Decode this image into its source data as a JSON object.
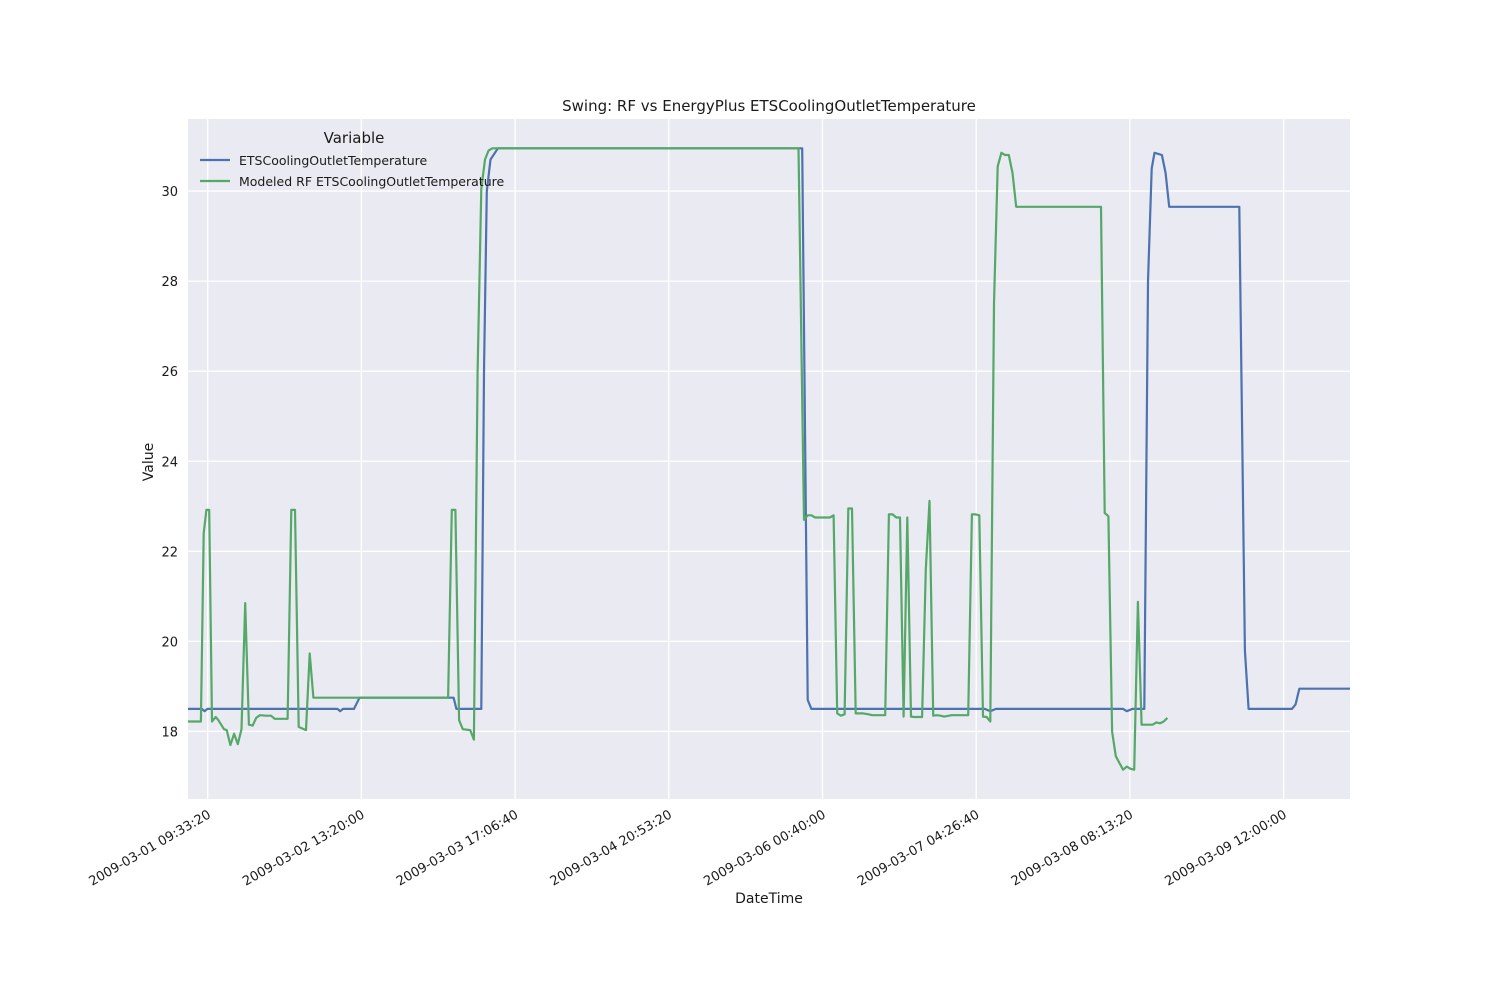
{
  "chart_data": {
    "type": "line",
    "title": "Swing: RF vs EnergyPlus ETSCoolingOutletTemperature",
    "xlabel": "DateTime",
    "ylabel": "Value",
    "x_range": [
      "2009-03-01 06:00:00",
      "2009-03-10 00:00:00"
    ],
    "ylim": [
      16.5,
      31.6
    ],
    "x_ticks": [
      "2009-03-01 09:33:20",
      "2009-03-02 13:20:00",
      "2009-03-03 17:06:40",
      "2009-03-04 20:53:20",
      "2009-03-06 00:40:00",
      "2009-03-07 04:26:40",
      "2009-03-08 08:13:20",
      "2009-03-09 12:00:00"
    ],
    "y_ticks": [
      18,
      20,
      22,
      24,
      26,
      28,
      30
    ],
    "grid": true,
    "legend": {
      "title": "Variable",
      "placement": "top-left"
    },
    "colors": {
      "background": "#eaeaf2",
      "grid": "#ffffff"
    },
    "series": [
      {
        "name": "ETSCoolingOutletTemperature",
        "color": "#4c72b0",
        "points": [
          [
            "2009-03-01 06:00:00",
            18.5
          ],
          [
            "2009-03-01 08:30:00",
            18.5
          ],
          [
            "2009-03-01 09:00:00",
            18.45
          ],
          [
            "2009-03-01 09:30:00",
            18.5
          ],
          [
            "2009-03-01 18:00:00",
            18.5
          ],
          [
            "2009-03-02 00:00:00",
            18.5
          ],
          [
            "2009-03-02 06:00:00",
            18.5
          ],
          [
            "2009-03-02 09:00:00",
            18.5
          ],
          [
            "2009-03-02 09:30:00",
            18.45
          ],
          [
            "2009-03-02 10:00:00",
            18.5
          ],
          [
            "2009-03-02 12:00:00",
            18.5
          ],
          [
            "2009-03-02 13:00:00",
            18.75
          ],
          [
            "2009-03-03 06:00:00",
            18.75
          ],
          [
            "2009-03-03 06:30:00",
            18.5
          ],
          [
            "2009-03-03 10:00:00",
            18.5
          ],
          [
            "2009-03-03 11:00:00",
            18.5
          ],
          [
            "2009-03-03 11:30:00",
            26
          ],
          [
            "2009-03-03 12:00:00",
            30
          ],
          [
            "2009-03-03 12:40:00",
            30.7
          ],
          [
            "2009-03-03 14:00:00",
            30.95
          ],
          [
            "2009-03-05 21:00:00",
            30.95
          ],
          [
            "2009-03-05 22:00:00",
            18.7
          ],
          [
            "2009-03-05 22:40:00",
            18.5
          ],
          [
            "2009-03-07 06:00:00",
            18.5
          ],
          [
            "2009-03-07 07:00:00",
            18.45
          ],
          [
            "2009-03-07 08:00:00",
            18.5
          ],
          [
            "2009-03-08 07:00:00",
            18.5
          ],
          [
            "2009-03-08 07:40:00",
            18.45
          ],
          [
            "2009-03-08 08:40:00",
            18.5
          ],
          [
            "2009-03-08 10:50:00",
            18.5
          ],
          [
            "2009-03-08 11:30:00",
            28
          ],
          [
            "2009-03-08 12:10:00",
            30.5
          ],
          [
            "2009-03-08 12:40:00",
            30.85
          ],
          [
            "2009-03-08 14:00:00",
            30.8
          ],
          [
            "2009-03-08 14:40:00",
            30.4
          ],
          [
            "2009-03-08 15:20:00",
            29.65
          ],
          [
            "2009-03-09 04:00:00",
            29.65
          ],
          [
            "2009-03-09 05:00:00",
            19.8
          ],
          [
            "2009-03-09 05:40:00",
            18.5
          ],
          [
            "2009-03-09 13:30:00",
            18.5
          ],
          [
            "2009-03-09 14:10:00",
            18.6
          ],
          [
            "2009-03-09 14:50:00",
            18.95
          ],
          [
            "2009-03-10 00:00:00",
            18.95
          ]
        ]
      },
      {
        "name": "Modeled RF ETSCoolingOutletTemperature",
        "color": "#55a868",
        "points": [
          [
            "2009-03-01 06:00:00",
            18.22
          ],
          [
            "2009-03-01 07:40:00",
            18.22
          ],
          [
            "2009-03-01 08:20:00",
            18.22
          ],
          [
            "2009-03-01 08:50:00",
            22.4
          ],
          [
            "2009-03-01 09:20:00",
            22.92
          ],
          [
            "2009-03-01 09:50:00",
            22.92
          ],
          [
            "2009-03-01 10:20:00",
            18.22
          ],
          [
            "2009-03-01 11:00:00",
            18.32
          ],
          [
            "2009-03-01 11:30:00",
            18.25
          ],
          [
            "2009-03-01 12:30:00",
            18.05
          ],
          [
            "2009-03-01 13:00:00",
            18.03
          ],
          [
            "2009-03-01 13:40:00",
            17.7
          ],
          [
            "2009-03-01 14:20:00",
            17.95
          ],
          [
            "2009-03-01 15:00:00",
            17.72
          ],
          [
            "2009-03-01 15:40:00",
            18.05
          ],
          [
            "2009-03-01 16:20:00",
            20.85
          ],
          [
            "2009-03-01 17:00:00",
            18.15
          ],
          [
            "2009-03-01 17:40:00",
            18.13
          ],
          [
            "2009-03-01 18:20:00",
            18.3
          ],
          [
            "2009-03-01 19:00:00",
            18.36
          ],
          [
            "2009-03-01 20:00:00",
            18.35
          ],
          [
            "2009-03-01 21:00:00",
            18.35
          ],
          [
            "2009-03-01 21:40:00",
            18.28
          ],
          [
            "2009-03-02 00:00:00",
            18.28
          ],
          [
            "2009-03-02 00:40:00",
            22.92
          ],
          [
            "2009-03-02 01:20:00",
            22.92
          ],
          [
            "2009-03-02 02:00:00",
            18.1
          ],
          [
            "2009-03-02 03:20:00",
            18.03
          ],
          [
            "2009-03-02 04:00:00",
            19.73
          ],
          [
            "2009-03-02 04:40:00",
            18.75
          ],
          [
            "2009-03-03 05:00:00",
            18.75
          ],
          [
            "2009-03-03 05:40:00",
            22.92
          ],
          [
            "2009-03-03 06:20:00",
            22.92
          ],
          [
            "2009-03-03 07:00:00",
            18.25
          ],
          [
            "2009-03-03 07:40:00",
            18.05
          ],
          [
            "2009-03-03 09:00:00",
            18.03
          ],
          [
            "2009-03-03 09:40:00",
            17.82
          ],
          [
            "2009-03-03 10:20:00",
            26
          ],
          [
            "2009-03-03 11:00:00",
            30.05
          ],
          [
            "2009-03-03 11:40:00",
            30.7
          ],
          [
            "2009-03-03 12:20:00",
            30.9
          ],
          [
            "2009-03-03 13:00:00",
            30.95
          ],
          [
            "2009-03-05 20:20:00",
            30.95
          ],
          [
            "2009-03-05 21:20:00",
            22.7
          ],
          [
            "2009-03-05 22:00:00",
            22.8
          ],
          [
            "2009-03-05 22:40:00",
            22.8
          ],
          [
            "2009-03-05 23:20:00",
            22.75
          ],
          [
            "2009-03-06 02:00:00",
            22.75
          ],
          [
            "2009-03-06 02:40:00",
            22.8
          ],
          [
            "2009-03-06 03:20:00",
            18.4
          ],
          [
            "2009-03-06 04:00:00",
            18.35
          ],
          [
            "2009-03-06 04:40:00",
            18.38
          ],
          [
            "2009-03-06 05:20:00",
            22.95
          ],
          [
            "2009-03-06 06:00:00",
            22.95
          ],
          [
            "2009-03-06 06:40:00",
            18.4
          ],
          [
            "2009-03-06 08:00:00",
            18.4
          ],
          [
            "2009-03-06 09:00:00",
            18.38
          ],
          [
            "2009-03-06 09:40:00",
            18.36
          ],
          [
            "2009-03-06 12:00:00",
            18.36
          ],
          [
            "2009-03-06 12:40:00",
            22.82
          ],
          [
            "2009-03-06 13:20:00",
            22.82
          ],
          [
            "2009-03-06 14:00:00",
            22.75
          ],
          [
            "2009-03-06 14:40:00",
            22.75
          ],
          [
            "2009-03-06 15:20:00",
            18.33
          ],
          [
            "2009-03-06 16:00:00",
            22.75
          ],
          [
            "2009-03-06 16:40:00",
            18.33
          ],
          [
            "2009-03-06 17:20:00",
            18.32
          ],
          [
            "2009-03-06 18:40:00",
            18.32
          ],
          [
            "2009-03-06 19:20:00",
            21.6
          ],
          [
            "2009-03-06 20:00:00",
            23.12
          ],
          [
            "2009-03-06 20:40:00",
            18.35
          ],
          [
            "2009-03-06 21:20:00",
            18.36
          ],
          [
            "2009-03-06 22:00:00",
            18.35
          ],
          [
            "2009-03-06 22:40:00",
            18.33
          ],
          [
            "2009-03-07 00:00:00",
            18.36
          ],
          [
            "2009-03-07 02:00:00",
            18.36
          ],
          [
            "2009-03-07 03:00:00",
            18.36
          ],
          [
            "2009-03-07 03:40:00",
            22.82
          ],
          [
            "2009-03-07 04:20:00",
            22.82
          ],
          [
            "2009-03-07 05:00:00",
            22.8
          ],
          [
            "2009-03-07 05:40:00",
            18.33
          ],
          [
            "2009-03-07 06:20:00",
            18.32
          ],
          [
            "2009-03-07 07:00:00",
            18.22
          ],
          [
            "2009-03-07 07:40:00",
            27.5
          ],
          [
            "2009-03-07 08:20:00",
            30.55
          ],
          [
            "2009-03-07 09:00:00",
            30.85
          ],
          [
            "2009-03-07 09:40:00",
            30.8
          ],
          [
            "2009-03-07 10:20:00",
            30.8
          ],
          [
            "2009-03-07 11:00:00",
            30.4
          ],
          [
            "2009-03-07 11:40:00",
            29.65
          ],
          [
            "2009-03-08 03:00:00",
            29.65
          ],
          [
            "2009-03-08 03:40:00",
            22.85
          ],
          [
            "2009-03-08 04:20:00",
            22.78
          ],
          [
            "2009-03-08 05:00:00",
            18
          ],
          [
            "2009-03-08 05:40:00",
            17.45
          ],
          [
            "2009-03-08 06:20:00",
            17.3
          ],
          [
            "2009-03-08 07:00:00",
            17.15
          ],
          [
            "2009-03-08 07:40:00",
            17.22
          ],
          [
            "2009-03-08 08:20:00",
            17.17
          ],
          [
            "2009-03-08 09:00:00",
            17.15
          ],
          [
            "2009-03-08 09:40:00",
            20.88
          ],
          [
            "2009-03-08 10:20:00",
            18.15
          ],
          [
            "2009-03-08 12:20:00",
            18.15
          ],
          [
            "2009-03-08 13:00:00",
            18.2
          ],
          [
            "2009-03-08 13:40:00",
            18.18
          ],
          [
            "2009-03-08 14:20:00",
            18.22
          ],
          [
            "2009-03-08 15:00:00",
            18.3
          ]
        ]
      }
    ]
  }
}
